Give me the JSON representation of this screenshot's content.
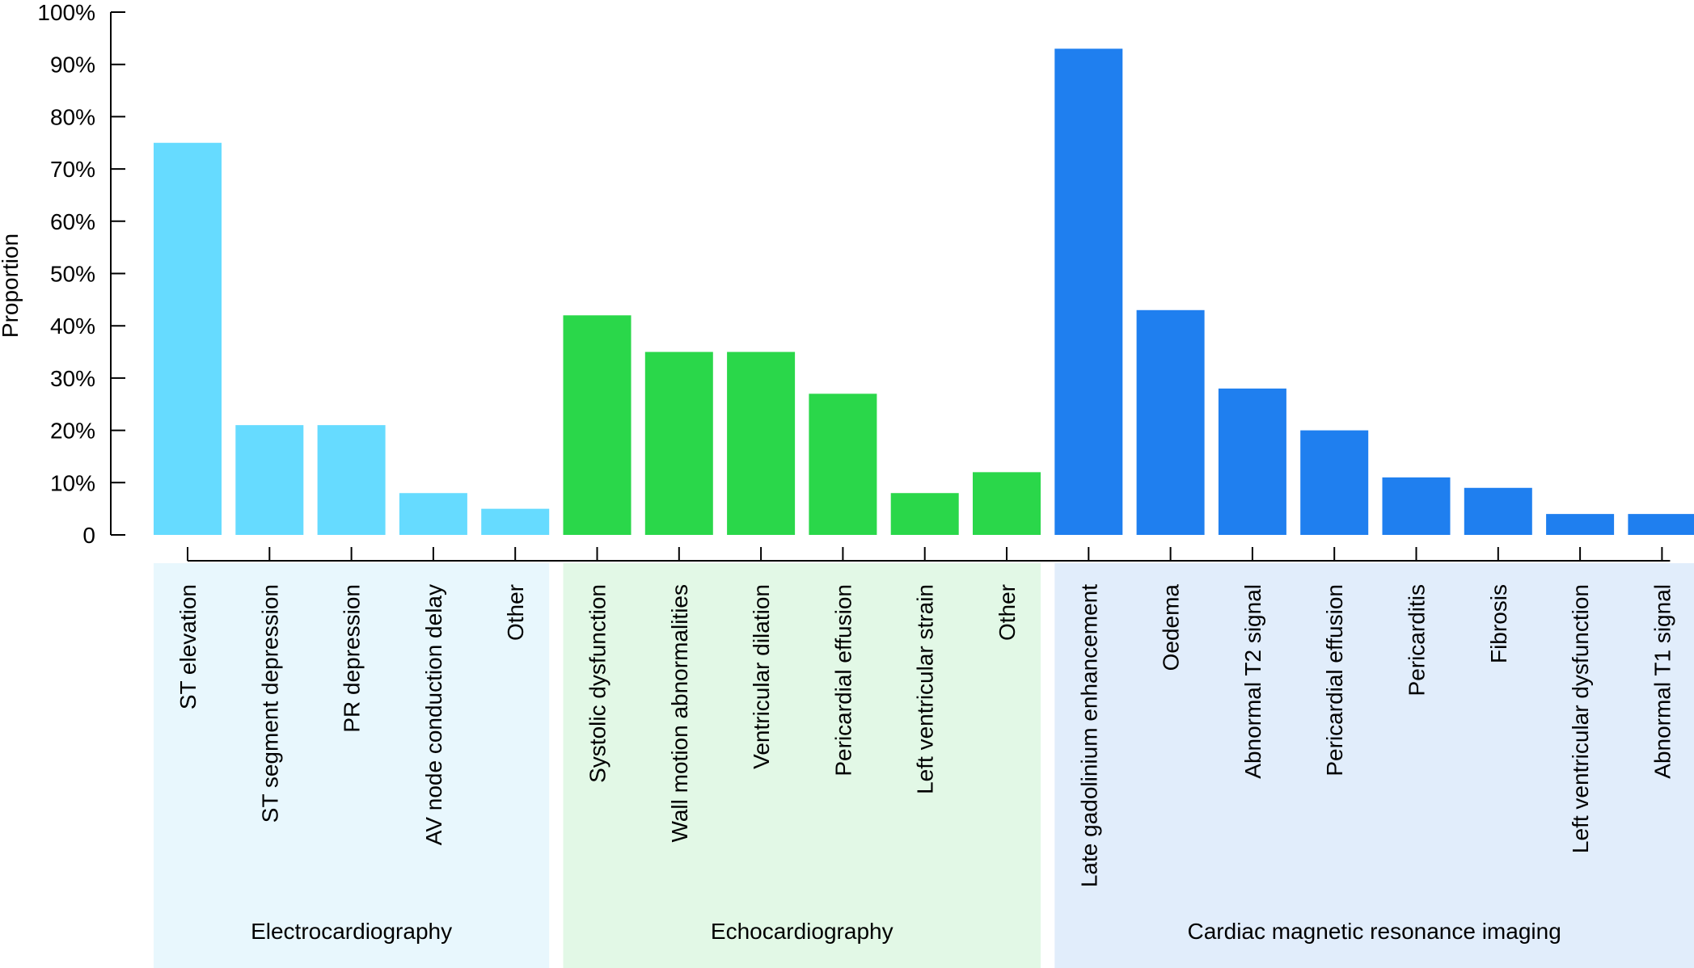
{
  "chart_data": {
    "type": "bar",
    "ylabel": "Proportion",
    "ylim": [
      0,
      100
    ],
    "y_ticks": [
      {
        "value": 0,
        "label": "0"
      },
      {
        "value": 10,
        "label": "10%"
      },
      {
        "value": 20,
        "label": "20%"
      },
      {
        "value": 30,
        "label": "30%"
      },
      {
        "value": 40,
        "label": "40%"
      },
      {
        "value": 50,
        "label": "50%"
      },
      {
        "value": 60,
        "label": "60%"
      },
      {
        "value": 70,
        "label": "70%"
      },
      {
        "value": 80,
        "label": "80%"
      },
      {
        "value": 90,
        "label": "90%"
      },
      {
        "value": 100,
        "label": "100%"
      }
    ],
    "grid": false,
    "groups": [
      {
        "name": "Electrocardiography",
        "color": "#66DBFF",
        "panel_color": "#E8F7FD",
        "categories": [
          "ST elevation",
          "ST segment depression",
          "PR depression",
          "AV node conduction delay",
          "Other"
        ],
        "values": [
          75,
          21,
          21,
          8,
          5
        ]
      },
      {
        "name": "Echocardiography",
        "color": "#2AD74A",
        "panel_color": "#E2F8E6",
        "categories": [
          "Systolic dysfunction",
          "Wall motion abnormalities",
          "Ventricular dilation",
          "Pericardial effusion",
          "Left ventricular strain",
          "Other"
        ],
        "values": [
          42,
          35,
          35,
          27,
          8,
          12
        ]
      },
      {
        "name": "Cardiac magnetic resonance imaging",
        "color": "#1F7FEF",
        "panel_color": "#E1EDFB",
        "categories": [
          "Late gadolinium enhancement",
          "Oedema",
          "Abnormal T2 signal",
          "Pericardial effusion",
          "Pericarditis",
          "Fibrosis",
          "Left ventricular dysfunction",
          "Abnormal T1 signal"
        ],
        "values": [
          93,
          43,
          28,
          20,
          11,
          9,
          4,
          4
        ]
      }
    ]
  }
}
